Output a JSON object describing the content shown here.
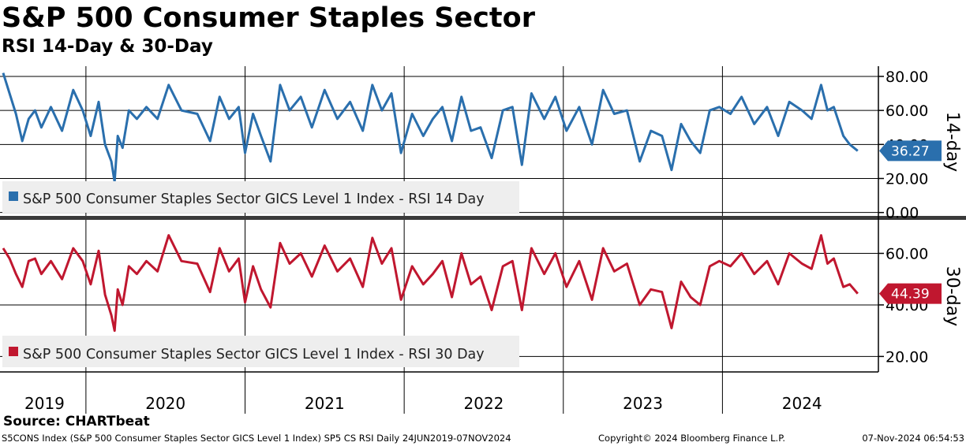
{
  "title": "S&P 500 Consumer Staples Sector",
  "subtitle": "RSI 14-Day & 30-Day",
  "source": "Source: CHARTbeat",
  "footer": {
    "left": "S5CONS Index (S&P 500 Consumer Staples Sector GICS Level 1 Index) SP5 CS RSI  Daily 24JUN2019-07NOV2024",
    "middle": "Copyright© 2024 Bloomberg Finance L.P.",
    "right": "07-Nov-2024 06:54:53"
  },
  "colors": {
    "rsi14": "#2a6fad",
    "rsi30": "#c0172f",
    "grid": "#000000",
    "legend_bg": "#eeeeee"
  },
  "chart_data": [
    {
      "type": "line",
      "panel": "top",
      "side_label": "14-day",
      "legend": "S&P 500 Consumer Staples Sector GICS Level 1 Index - RSI 14 Day",
      "ylim": [
        -2,
        86
      ],
      "yticks": [
        "80.00",
        "60.00",
        "40.00",
        "20.00",
        "0.00"
      ],
      "ytick_values": [
        80,
        60,
        40,
        20,
        0
      ],
      "last_value": 36.27,
      "last_label": "36.27",
      "x": [
        2019.48,
        2019.52,
        2019.56,
        2019.6,
        2019.64,
        2019.68,
        2019.72,
        2019.78,
        2019.85,
        2019.92,
        2019.98,
        2020.03,
        2020.08,
        2020.12,
        2020.16,
        2020.18,
        2020.2,
        2020.23,
        2020.27,
        2020.32,
        2020.38,
        2020.45,
        2020.52,
        2020.6,
        2020.7,
        2020.78,
        2020.84,
        2020.9,
        2020.96,
        2021.0,
        2021.05,
        2021.1,
        2021.16,
        2021.22,
        2021.28,
        2021.35,
        2021.42,
        2021.5,
        2021.58,
        2021.66,
        2021.74,
        2021.8,
        2021.86,
        2021.92,
        2021.98,
        2022.05,
        2022.12,
        2022.18,
        2022.24,
        2022.3,
        2022.36,
        2022.42,
        2022.48,
        2022.55,
        2022.62,
        2022.68,
        2022.74,
        2022.8,
        2022.88,
        2022.95,
        2023.02,
        2023.1,
        2023.18,
        2023.25,
        2023.32,
        2023.4,
        2023.48,
        2023.55,
        2023.62,
        2023.68,
        2023.74,
        2023.8,
        2023.86,
        2023.92,
        2023.98,
        2024.05,
        2024.12,
        2024.2,
        2024.28,
        2024.35,
        2024.42,
        2024.5,
        2024.56,
        2024.62,
        2024.66,
        2024.7,
        2024.76,
        2024.8,
        2024.85
      ],
      "values": [
        82,
        70,
        58,
        42,
        55,
        60,
        50,
        62,
        48,
        72,
        60,
        45,
        65,
        40,
        30,
        18,
        45,
        38,
        60,
        55,
        62,
        55,
        75,
        60,
        58,
        42,
        68,
        55,
        62,
        35,
        58,
        45,
        30,
        75,
        60,
        68,
        50,
        72,
        55,
        65,
        48,
        75,
        60,
        70,
        35,
        58,
        45,
        55,
        62,
        42,
        68,
        48,
        50,
        32,
        60,
        62,
        28,
        70,
        55,
        68,
        48,
        62,
        40,
        72,
        58,
        60,
        30,
        48,
        45,
        25,
        52,
        42,
        35,
        60,
        62,
        58,
        68,
        52,
        62,
        45,
        65,
        60,
        55,
        75,
        60,
        62,
        45,
        40,
        36.27
      ]
    },
    {
      "type": "line",
      "panel": "bottom",
      "side_label": "30-day",
      "legend": "S&P 500 Consumer Staples Sector GICS Level 1 Index - RSI 30 Day",
      "ylim": [
        14,
        73
      ],
      "yticks": [
        "60.00",
        "40.00",
        "20.00"
      ],
      "ytick_values": [
        60,
        40,
        20
      ],
      "last_value": 44.39,
      "last_label": "44.39",
      "x": [
        2019.48,
        2019.52,
        2019.56,
        2019.6,
        2019.64,
        2019.68,
        2019.72,
        2019.78,
        2019.85,
        2019.92,
        2019.98,
        2020.03,
        2020.08,
        2020.12,
        2020.16,
        2020.18,
        2020.2,
        2020.23,
        2020.27,
        2020.32,
        2020.38,
        2020.45,
        2020.52,
        2020.6,
        2020.7,
        2020.78,
        2020.84,
        2020.9,
        2020.96,
        2021.0,
        2021.05,
        2021.1,
        2021.16,
        2021.22,
        2021.28,
        2021.35,
        2021.42,
        2021.5,
        2021.58,
        2021.66,
        2021.74,
        2021.8,
        2021.86,
        2021.92,
        2021.98,
        2022.05,
        2022.12,
        2022.18,
        2022.24,
        2022.3,
        2022.36,
        2022.42,
        2022.48,
        2022.55,
        2022.62,
        2022.68,
        2022.74,
        2022.8,
        2022.88,
        2022.95,
        2023.02,
        2023.1,
        2023.18,
        2023.25,
        2023.32,
        2023.4,
        2023.48,
        2023.55,
        2023.62,
        2023.68,
        2023.74,
        2023.8,
        2023.86,
        2023.92,
        2023.98,
        2024.05,
        2024.12,
        2024.2,
        2024.28,
        2024.35,
        2024.42,
        2024.5,
        2024.56,
        2024.62,
        2024.66,
        2024.7,
        2024.76,
        2024.8,
        2024.85
      ],
      "values": [
        62,
        58,
        52,
        47,
        57,
        58,
        52,
        57,
        50,
        62,
        57,
        48,
        61,
        44,
        36,
        30,
        46,
        40,
        55,
        52,
        57,
        53,
        67,
        57,
        56,
        45,
        62,
        53,
        58,
        41,
        55,
        46,
        39,
        64,
        56,
        60,
        51,
        63,
        53,
        58,
        47,
        66,
        56,
        62,
        42,
        55,
        48,
        52,
        57,
        43,
        60,
        48,
        51,
        38,
        55,
        57,
        38,
        62,
        52,
        60,
        47,
        57,
        42,
        62,
        53,
        56,
        40,
        46,
        45,
        31,
        49,
        43,
        40,
        55,
        57,
        55,
        60,
        52,
        57,
        48,
        60,
        56,
        54,
        67,
        56,
        58,
        47,
        48,
        44.39
      ]
    }
  ],
  "x_axis": {
    "year_labels": [
      "2019",
      "2020",
      "2021",
      "2022",
      "2023",
      "2024"
    ],
    "year_centers": [
      2019.74,
      2020.5,
      2021.5,
      2022.5,
      2023.5,
      2024.5
    ],
    "year_dividers": [
      2020.0,
      2021.0,
      2022.0,
      2023.0,
      2024.0
    ]
  }
}
